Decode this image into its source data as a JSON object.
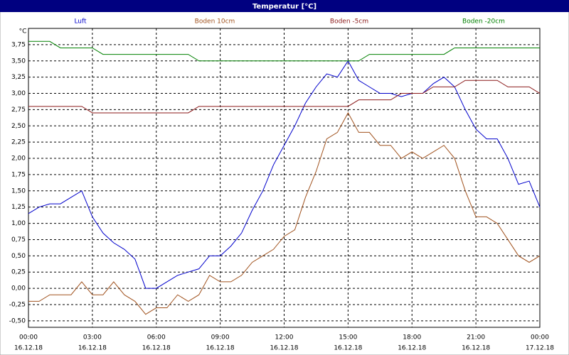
{
  "chart_data": {
    "type": "line",
    "title": "Temperatur [°C]",
    "y_unit": "°C",
    "x": [
      0,
      0.5,
      1,
      1.5,
      2,
      2.5,
      3,
      3.5,
      4,
      4.5,
      5,
      5.5,
      6,
      6.5,
      7,
      7.5,
      8,
      8.5,
      9,
      9.5,
      10,
      10.5,
      11,
      11.5,
      12,
      12.5,
      13,
      13.5,
      14,
      14.5,
      15,
      15.5,
      16,
      16.5,
      17,
      17.5,
      18,
      18.5,
      19,
      19.5,
      20,
      20.5,
      21,
      21.5,
      22,
      22.5,
      23,
      23.5,
      24
    ],
    "series": [
      {
        "name": "Luft",
        "color": "#0000cc",
        "values": [
          1.15,
          1.25,
          1.3,
          1.3,
          1.4,
          1.5,
          1.1,
          0.85,
          0.7,
          0.6,
          0.45,
          0.0,
          0.0,
          0.1,
          0.2,
          0.25,
          0.3,
          0.5,
          0.5,
          0.65,
          0.85,
          1.2,
          1.5,
          1.9,
          2.2,
          2.5,
          2.85,
          3.1,
          3.3,
          3.25,
          3.5,
          3.2,
          3.1,
          3.0,
          3.0,
          2.95,
          3.0,
          3.0,
          3.15,
          3.25,
          3.1,
          2.75,
          2.45,
          2.3,
          2.3,
          2.0,
          1.6,
          1.65,
          1.25
        ]
      },
      {
        "name": "Boden 10cm",
        "color": "#a0521e",
        "values": [
          -0.2,
          -0.2,
          -0.1,
          -0.1,
          -0.1,
          0.1,
          -0.1,
          -0.1,
          0.1,
          -0.1,
          -0.2,
          -0.4,
          -0.3,
          -0.3,
          -0.1,
          -0.2,
          -0.1,
          0.2,
          0.1,
          0.1,
          0.2,
          0.4,
          0.5,
          0.6,
          0.8,
          0.9,
          1.4,
          1.8,
          2.3,
          2.4,
          2.7,
          2.4,
          2.4,
          2.2,
          2.2,
          2.0,
          2.1,
          2.0,
          2.1,
          2.2,
          2.0,
          1.5,
          1.1,
          1.1,
          1.0,
          0.75,
          0.5,
          0.4,
          0.5
        ]
      },
      {
        "name": "Boden -5cm",
        "color": "#8b1a1a",
        "values": [
          2.8,
          2.8,
          2.8,
          2.8,
          2.8,
          2.8,
          2.7,
          2.7,
          2.7,
          2.7,
          2.7,
          2.7,
          2.7,
          2.7,
          2.7,
          2.7,
          2.8,
          2.8,
          2.8,
          2.8,
          2.8,
          2.8,
          2.8,
          2.8,
          2.8,
          2.8,
          2.8,
          2.8,
          2.8,
          2.8,
          2.8,
          2.9,
          2.9,
          2.9,
          2.9,
          3.0,
          3.0,
          3.0,
          3.1,
          3.1,
          3.1,
          3.2,
          3.2,
          3.2,
          3.2,
          3.1,
          3.1,
          3.1,
          3.0
        ]
      },
      {
        "name": "Boden -20cm",
        "color": "#008000",
        "values": [
          3.8,
          3.8,
          3.8,
          3.7,
          3.7,
          3.7,
          3.7,
          3.6,
          3.6,
          3.6,
          3.6,
          3.6,
          3.6,
          3.6,
          3.6,
          3.6,
          3.5,
          3.5,
          3.5,
          3.5,
          3.5,
          3.5,
          3.5,
          3.5,
          3.5,
          3.5,
          3.5,
          3.5,
          3.5,
          3.5,
          3.5,
          3.5,
          3.6,
          3.6,
          3.6,
          3.6,
          3.6,
          3.6,
          3.6,
          3.6,
          3.7,
          3.7,
          3.7,
          3.7,
          3.7,
          3.7,
          3.7,
          3.7,
          3.7
        ]
      }
    ],
    "xlim": [
      0,
      24
    ],
    "xticks": [
      {
        "value": 0,
        "label": "00:00"
      },
      {
        "value": 3,
        "label": "03:00"
      },
      {
        "value": 6,
        "label": "06:00"
      },
      {
        "value": 9,
        "label": "09:00"
      },
      {
        "value": 12,
        "label": "12:00"
      },
      {
        "value": 15,
        "label": "15:00"
      },
      {
        "value": 18,
        "label": "18:00"
      },
      {
        "value": 21,
        "label": "21:00"
      },
      {
        "value": 24,
        "label": "00:00"
      }
    ],
    "xtick_dates": [
      "16.12.18",
      "16.12.18",
      "16.12.18",
      "16.12.18",
      "16.12.18",
      "16.12.18",
      "16.12.18",
      "16.12.18",
      "17.12.18"
    ],
    "ylim": [
      -0.6,
      4.0
    ],
    "yticks": [
      {
        "value": -0.5,
        "label": "-0,50"
      },
      {
        "value": -0.25,
        "label": "-0,25"
      },
      {
        "value": 0,
        "label": "0,00"
      },
      {
        "value": 0.25,
        "label": "0,25"
      },
      {
        "value": 0.5,
        "label": "0,50"
      },
      {
        "value": 0.75,
        "label": "0,75"
      },
      {
        "value": 1,
        "label": "1,00"
      },
      {
        "value": 1.25,
        "label": "1,25"
      },
      {
        "value": 1.5,
        "label": "1,50"
      },
      {
        "value": 1.75,
        "label": "1,75"
      },
      {
        "value": 2,
        "label": "2,00"
      },
      {
        "value": 2.25,
        "label": "2,25"
      },
      {
        "value": 2.5,
        "label": "2,50"
      },
      {
        "value": 2.75,
        "label": "2,75"
      },
      {
        "value": 3,
        "label": "3,00"
      },
      {
        "value": 3.25,
        "label": "3,25"
      },
      {
        "value": 3.5,
        "label": "3,50"
      },
      {
        "value": 3.75,
        "label": "3,75"
      }
    ],
    "grid": true
  }
}
